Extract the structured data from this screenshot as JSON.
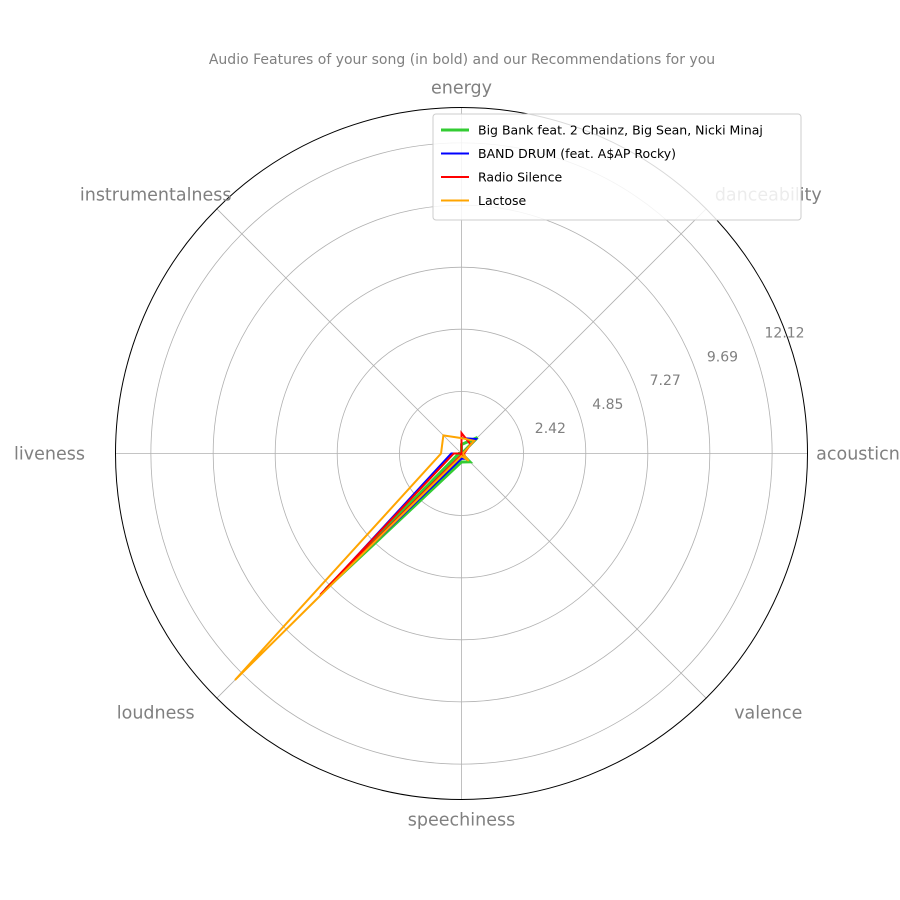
{
  "chart_data": {
    "type": "radar",
    "title": "Audio Features of your song (in bold) and our Recommendations for you",
    "axes": [
      "acousticness",
      "danceability",
      "energy",
      "instrumentalness",
      "liveness",
      "loudness",
      "speechiness",
      "valence"
    ],
    "rticks": [
      2.42,
      4.85,
      7.27,
      9.69,
      12.12
    ],
    "rmax": 13.5,
    "grid": true,
    "legend_position": "top-right",
    "colors": {
      "Big Bank feat. 2 Chainz, Big Sean, Nicki Minaj": "#33cc33",
      "BAND DRUM (feat. A$AP Rocky)": "#0000ff",
      "Radio Silence": "#ff0000",
      "Lactose": "#ffa500"
    },
    "series": [
      {
        "name": "Big Bank feat. 2 Chainz, Big Sean, Nicki Minaj",
        "color": "#33cc33",
        "bold": true,
        "values": [
          0.01,
          0.88,
          0.35,
          0.0,
          0.1,
          7.5,
          0.33,
          0.46
        ]
      },
      {
        "name": "BAND DRUM (feat. A$AP Rocky)",
        "color": "#0000ff",
        "bold": false,
        "values": [
          0.05,
          0.8,
          0.6,
          0.0,
          0.4,
          7.2,
          0.2,
          0.3
        ]
      },
      {
        "name": "Radio Silence",
        "color": "#ff0000",
        "bold": false,
        "values": [
          0.1,
          0.5,
          0.8,
          0.0,
          0.3,
          7.8,
          0.05,
          0.2
        ]
      },
      {
        "name": "Lactose",
        "color": "#ffa500",
        "bold": false,
        "values": [
          0.05,
          0.7,
          0.6,
          1.0,
          0.8,
          12.5,
          0.1,
          0.4
        ]
      }
    ]
  }
}
